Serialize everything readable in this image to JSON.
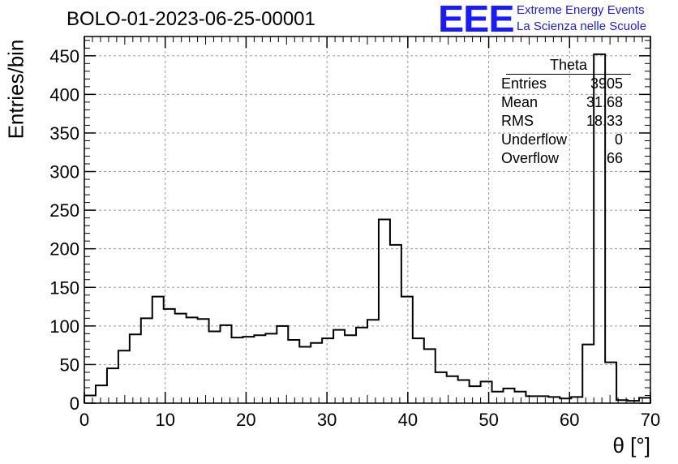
{
  "header": {
    "run_title": "BOLO-01-2023-06-25-00001",
    "logo_mark": "EEE",
    "logo_line1": "Extreme Energy Events",
    "logo_line2": "La Scienza nelle Scuole",
    "logo_color": "#1a1aff"
  },
  "stats_box": {
    "title": "Theta",
    "rows": [
      {
        "label": "Entries",
        "value": "3905"
      },
      {
        "label": "Mean",
        "value": "31.68"
      },
      {
        "label": "RMS",
        "value": "18.33"
      },
      {
        "label": "Underflow",
        "value": "0"
      },
      {
        "label": "Overflow",
        "value": "66"
      }
    ]
  },
  "chart_data": {
    "type": "bar",
    "histogram": true,
    "title": "BOLO-01-2023-06-25-00001",
    "xlabel": "θ [°]",
    "ylabel": "Entries/bin",
    "xlim": [
      0,
      70
    ],
    "ylim": [
      0,
      475
    ],
    "bin_width": 1.4,
    "x_ticks": [
      0,
      10,
      20,
      30,
      40,
      50,
      60,
      70
    ],
    "y_ticks": [
      0,
      50,
      100,
      150,
      200,
      250,
      300,
      350,
      400,
      450
    ],
    "grid": true,
    "legend": "none",
    "bin_edges_start": 0,
    "values": [
      10,
      23,
      45,
      68,
      89,
      110,
      138,
      122,
      116,
      111,
      109,
      93,
      101,
      85,
      86,
      88,
      90,
      100,
      82,
      73,
      78,
      84,
      95,
      88,
      98,
      108,
      238,
      205,
      138,
      84,
      70,
      40,
      35,
      30,
      22,
      28,
      15,
      19,
      15,
      9,
      9,
      8,
      6,
      8,
      76,
      452,
      53,
      4,
      3,
      7
    ]
  }
}
